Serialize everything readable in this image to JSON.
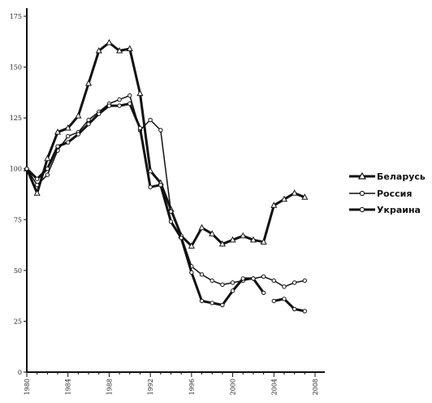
{
  "chart_data": {
    "type": "line",
    "title": "",
    "xlabel": "",
    "ylabel": "",
    "xlim": [
      1980,
      2008
    ],
    "ylim": [
      0,
      175
    ],
    "x_ticks": [
      1980,
      1984,
      1988,
      1992,
      1996,
      2000,
      2004,
      2008
    ],
    "y_ticks": [
      0,
      25,
      50,
      75,
      100,
      125,
      150,
      175
    ],
    "grid": false,
    "legend_position": "right",
    "series": [
      {
        "name": "Беларусь",
        "marker": "triangle",
        "width": 3,
        "points": [
          [
            1980,
            100
          ],
          [
            1981,
            88
          ],
          [
            1982,
            105
          ],
          [
            1983,
            118
          ],
          [
            1984,
            120
          ],
          [
            1985,
            126
          ],
          [
            1986,
            142
          ],
          [
            1987,
            158
          ],
          [
            1988,
            162
          ],
          [
            1989,
            158
          ],
          [
            1990,
            159
          ],
          [
            1991,
            137
          ],
          [
            1992,
            99
          ],
          [
            1993,
            93
          ],
          [
            1994,
            80
          ],
          [
            1995,
            67
          ],
          [
            1996,
            62
          ],
          [
            1997,
            71
          ],
          [
            1998,
            68
          ],
          [
            1999,
            63
          ],
          [
            2000,
            65
          ],
          [
            2001,
            67
          ],
          [
            2002,
            65
          ],
          [
            2003,
            64
          ],
          [
            2004,
            82
          ],
          [
            2005,
            85
          ],
          [
            2006,
            88
          ],
          [
            2007,
            86
          ]
        ]
      },
      {
        "name": "Россия",
        "marker": "circle",
        "width": 1.5,
        "points": [
          [
            1980,
            100
          ],
          [
            1981,
            92
          ],
          [
            1982,
            97
          ],
          [
            1983,
            109
          ],
          [
            1984,
            116
          ],
          [
            1985,
            118
          ],
          [
            1986,
            124
          ],
          [
            1987,
            128
          ],
          [
            1988,
            132
          ],
          [
            1989,
            134
          ],
          [
            1990,
            136
          ],
          [
            1991,
            119
          ],
          [
            1992,
            124
          ],
          [
            1993,
            119
          ],
          [
            1994,
            79
          ],
          [
            1995,
            67
          ],
          [
            1996,
            52
          ],
          [
            1997,
            48
          ],
          [
            1998,
            45
          ],
          [
            1999,
            43
          ],
          [
            2000,
            44
          ],
          [
            2001,
            45
          ],
          [
            2002,
            46
          ],
          [
            2003,
            47
          ],
          [
            2004,
            45
          ],
          [
            2005,
            42
          ],
          [
            2006,
            44
          ],
          [
            2007,
            45
          ]
        ]
      },
      {
        "name": "Украина",
        "marker": "circle",
        "width": 3,
        "segments": [
          [
            [
              1980,
              100
            ],
            [
              1981,
              95
            ],
            [
              1982,
              100
            ],
            [
              1983,
              111
            ],
            [
              1984,
              113
            ],
            [
              1985,
              117
            ],
            [
              1986,
              122
            ],
            [
              1987,
              127
            ],
            [
              1988,
              131
            ],
            [
              1989,
              131
            ],
            [
              1990,
              132
            ],
            [
              1991,
              120
            ],
            [
              1992,
              91
            ],
            [
              1993,
              92
            ],
            [
              1994,
              74
            ],
            [
              1995,
              66
            ],
            [
              1996,
              49
            ],
            [
              1997,
              35
            ],
            [
              1998,
              34
            ],
            [
              1999,
              33
            ],
            [
              2000,
              40
            ],
            [
              2001,
              46
            ],
            [
              2002,
              46
            ],
            [
              2003,
              39
            ]
          ],
          [
            [
              2004,
              35
            ],
            [
              2005,
              36
            ],
            [
              2006,
              31
            ],
            [
              2007,
              30
            ]
          ]
        ]
      }
    ]
  },
  "legend": [
    {
      "label": "Беларусь"
    },
    {
      "label": "Россия"
    },
    {
      "label": "Украина"
    }
  ]
}
